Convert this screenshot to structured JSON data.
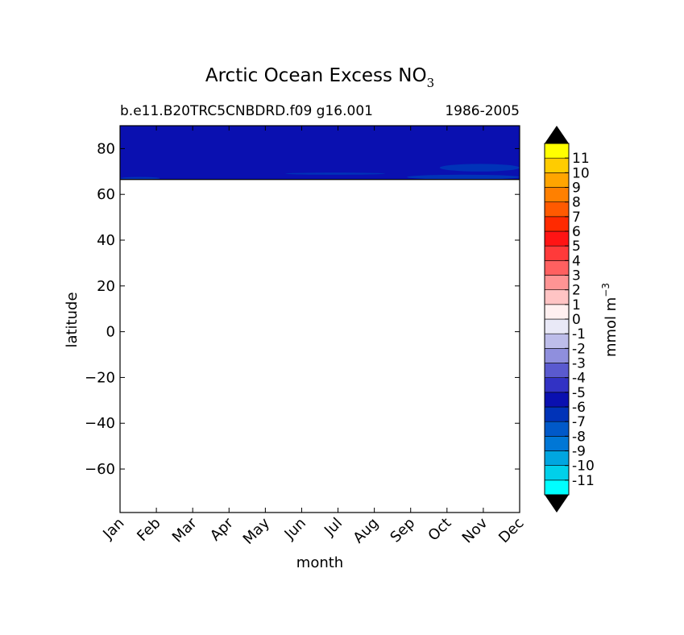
{
  "chart_data": {
    "type": "heatmap",
    "title": "Arctic Ocean Excess NO",
    "title_subscript": "3",
    "subtitle_left": "b.e11.B20TRC5CNBDRD.f09 g16.001",
    "subtitle_right": "1986-2005",
    "xlabel": "month",
    "ylabel": "latitude",
    "x_ticks": [
      "Jan",
      "Feb",
      "Mar",
      "Apr",
      "May",
      "Jun",
      "Jul",
      "Aug",
      "Sep",
      "Oct",
      "Nov",
      "Dec"
    ],
    "ylim": [
      -79,
      90
    ],
    "y_ticks": [
      -60,
      -40,
      -20,
      0,
      20,
      40,
      60,
      80
    ],
    "data_region": {
      "lat_min": 66.5,
      "lat_max": 90,
      "dominant_level": -5
    },
    "patches": [
      {
        "name": "patch-jan-edge",
        "level": -6,
        "month_start": 0.0,
        "month_end": 1.1,
        "lat_min": 66.5,
        "lat_max": 67.6
      },
      {
        "name": "patch-jun-aug",
        "level": -6,
        "month_start": 4.55,
        "month_end": 7.3,
        "lat_min": 68.6,
        "lat_max": 69.5
      },
      {
        "name": "patch-sep-dec-lower",
        "level": -6,
        "month_start": 7.9,
        "month_end": 11.0,
        "lat_min": 66.5,
        "lat_max": 68.6
      },
      {
        "name": "patch-oct-dec-upper",
        "level": -6,
        "month_start": 8.8,
        "month_end": 11.0,
        "lat_min": 70.0,
        "lat_max": 73.3
      }
    ],
    "colorbar": {
      "label": "mmol m",
      "label_superscript": "−3",
      "levels": [
        "-11",
        "-10",
        "-9",
        "-8",
        "-7",
        "-6",
        "-5",
        "-4",
        "-3",
        "-2",
        "-1",
        "0",
        "1",
        "2",
        "3",
        "4",
        "5",
        "6",
        "7",
        "8",
        "9",
        "10",
        "11"
      ],
      "colors": [
        "#00ffff",
        "#00d0ea",
        "#00a6e0",
        "#0077d6",
        "#0059c9",
        "#0033b8",
        "#0a10b0",
        "#3232c4",
        "#5a5acf",
        "#8f8fdd",
        "#bdbdea",
        "#e9e9f7",
        "#fff0f0",
        "#ffc4c4",
        "#ff9494",
        "#ff6060",
        "#ff3a3a",
        "#ff1414",
        "#ff2a00",
        "#ff5a00",
        "#ff8000",
        "#ffa500",
        "#ffcc00",
        "#ffff00"
      ],
      "extend_color": "#000000"
    }
  }
}
